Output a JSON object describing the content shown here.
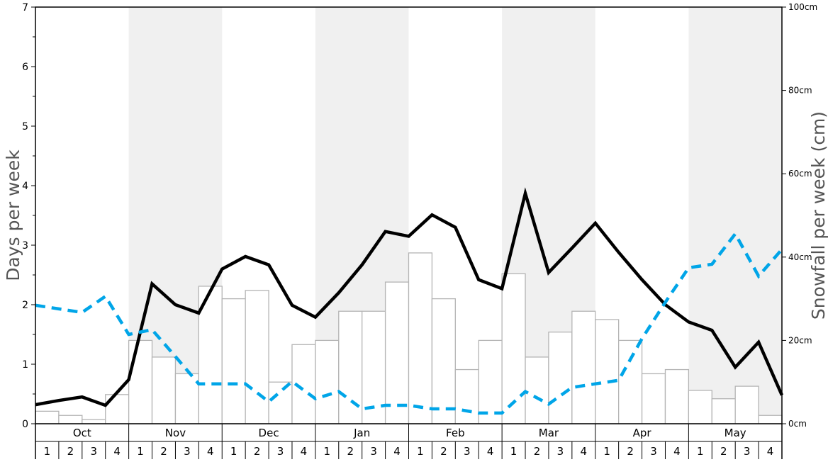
{
  "chart_data": {
    "type": "bar+line",
    "ylabel_left": "Days per week",
    "ylabel_right": "Snowfall per week (cm)",
    "ylim_left": [
      0,
      7
    ],
    "ylim_right": [
      0,
      100
    ],
    "left_ticks": [
      "0",
      "1",
      "2",
      "3",
      "4",
      "5",
      "6",
      "7"
    ],
    "right_ticks": [
      "0cm",
      "20cm",
      "40cm",
      "60cm",
      "80cm",
      "100cm"
    ],
    "months": [
      "Oct",
      "Nov",
      "Dec",
      "Jan",
      "Feb",
      "Mar",
      "Apr",
      "May"
    ],
    "weeks": [
      "1",
      "2",
      "3",
      "4"
    ],
    "shaded_months": [
      "Nov",
      "Jan",
      "Mar",
      "May"
    ],
    "bars": {
      "axis": "right",
      "color": "#ffffff",
      "stroke": "#b4b4b4",
      "values": [
        3,
        2,
        1,
        7,
        20,
        16,
        12,
        33,
        30,
        32,
        10,
        19,
        20,
        27,
        27,
        34,
        41,
        30,
        13,
        20,
        36,
        16,
        22,
        27,
        25,
        20,
        12,
        13,
        8,
        6,
        9,
        2
      ]
    },
    "series": [
      {
        "axis": "left",
        "color": "#000000",
        "style": "solid",
        "values": [
          0.32,
          0.39,
          0.45,
          0.31,
          0.74,
          2.35,
          2.0,
          1.86,
          2.6,
          2.81,
          2.67,
          1.99,
          1.79,
          2.2,
          2.67,
          3.23,
          3.15,
          3.51,
          3.3,
          2.42,
          2.27,
          3.87,
          2.54,
          2.95,
          3.37,
          2.88,
          2.42,
          2.0,
          1.71,
          1.57,
          0.95,
          1.37,
          0.48
        ]
      },
      {
        "axis": "left",
        "color": "#00a5e8",
        "style": "dashed",
        "values": [
          1.99,
          1.93,
          1.87,
          2.14,
          1.5,
          1.58,
          1.13,
          0.67,
          0.67,
          0.67,
          0.37,
          0.71,
          0.42,
          0.54,
          0.25,
          0.31,
          0.31,
          0.25,
          0.25,
          0.18,
          0.18,
          0.54,
          0.33,
          0.61,
          0.67,
          0.73,
          1.43,
          2.04,
          2.62,
          2.68,
          3.19,
          2.48,
          2.93
        ]
      }
    ]
  }
}
